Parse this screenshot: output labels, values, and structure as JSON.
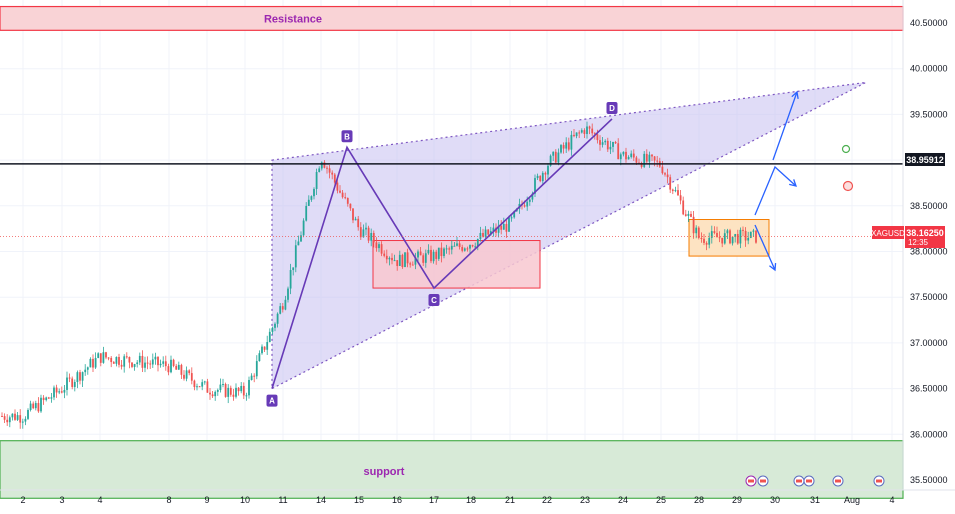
{
  "symbol": "XAGUSD",
  "countdown": "12:35",
  "zones": {
    "resistance": {
      "label": "Resistance",
      "from": 40.42,
      "to": 40.68
    },
    "support": {
      "label": "support",
      "from": 35.3,
      "to": 35.93
    }
  },
  "level_line": {
    "value": 38.95912,
    "label": "38.95912"
  },
  "current_price": {
    "value": 38.1625,
    "label": "38.16250"
  },
  "pattern_points": [
    {
      "name": "A",
      "day": "10",
      "price": 36.5
    },
    {
      "name": "B",
      "day": "14",
      "price": 39.14
    },
    {
      "name": "C",
      "day": "17",
      "price": 37.6
    },
    {
      "name": "D",
      "day": "23",
      "price": 39.45
    }
  ],
  "colors": {
    "resistance_fill": "#f9d3d6",
    "resistance_line": "#f23645",
    "support_fill": "#d7ead7",
    "support_line": "#4caf50",
    "wedge_fill": "#c7bff0",
    "wedge_line": "#7e57c2",
    "up_candle": "#26a69a",
    "down_candle": "#ef5350",
    "arrow": "#2962ff",
    "box_pink_fill": "#f8c8d0",
    "box_orange_fill": "#fde3c2",
    "box_orange_line": "#f57c00"
  },
  "chart_data": {
    "type": "candlestick",
    "instrument": "XAGUSD",
    "ylim": [
      35.25,
      40.75
    ],
    "y_ticks": [
      35.5,
      36.0,
      36.5,
      37.0,
      37.5,
      38.0,
      38.5,
      39.0,
      39.5,
      40.0,
      40.5
    ],
    "y_tick_labels": [
      "35.50000",
      "36.00000",
      "36.50000",
      "37.00000",
      "37.50000",
      "38.00000",
      "38.50000",
      "39.00000",
      "39.50000",
      "40.00000",
      "40.50000"
    ],
    "x_tick_labels": [
      "2",
      "3",
      "4",
      "8",
      "9",
      "10",
      "11",
      "14",
      "15",
      "16",
      "17",
      "18",
      "21",
      "22",
      "23",
      "24",
      "25",
      "28",
      "29",
      "30",
      "31",
      "Aug",
      "4"
    ],
    "approx_closes": [
      {
        "day": "2",
        "price": 36.2
      },
      {
        "day": "3",
        "price": 36.5
      },
      {
        "day": "4",
        "price": 36.85
      },
      {
        "day": "8",
        "price": 36.75
      },
      {
        "day": "9",
        "price": 36.5
      },
      {
        "day": "10",
        "price": 36.45
      },
      {
        "day": "11",
        "price": 37.45
      },
      {
        "day": "14",
        "price": 39.05
      },
      {
        "day": "15",
        "price": 38.25
      },
      {
        "day": "16",
        "price": 37.9
      },
      {
        "day": "17",
        "price": 37.95
      },
      {
        "day": "18",
        "price": 38.1
      },
      {
        "day": "21",
        "price": 38.3
      },
      {
        "day": "22",
        "price": 38.95
      },
      {
        "day": "23",
        "price": 39.35
      },
      {
        "day": "24",
        "price": 39.05
      },
      {
        "day": "25",
        "price": 38.95
      },
      {
        "day": "28",
        "price": 38.15
      },
      {
        "day": "29",
        "price": 38.16
      }
    ],
    "wedge": {
      "apex_price": 39.85,
      "upper_start": 39.0,
      "lower_start": 36.5
    },
    "rect_consolidation": {
      "from_day": "15",
      "to_day": "21",
      "low": 37.6,
      "high": 38.12
    },
    "rect_current": {
      "from_day": "28",
      "to_day": "30",
      "low": 37.95,
      "high": 38.35
    },
    "projections": [
      "up to 39.75",
      "down to 37.6"
    ],
    "grid": true
  }
}
